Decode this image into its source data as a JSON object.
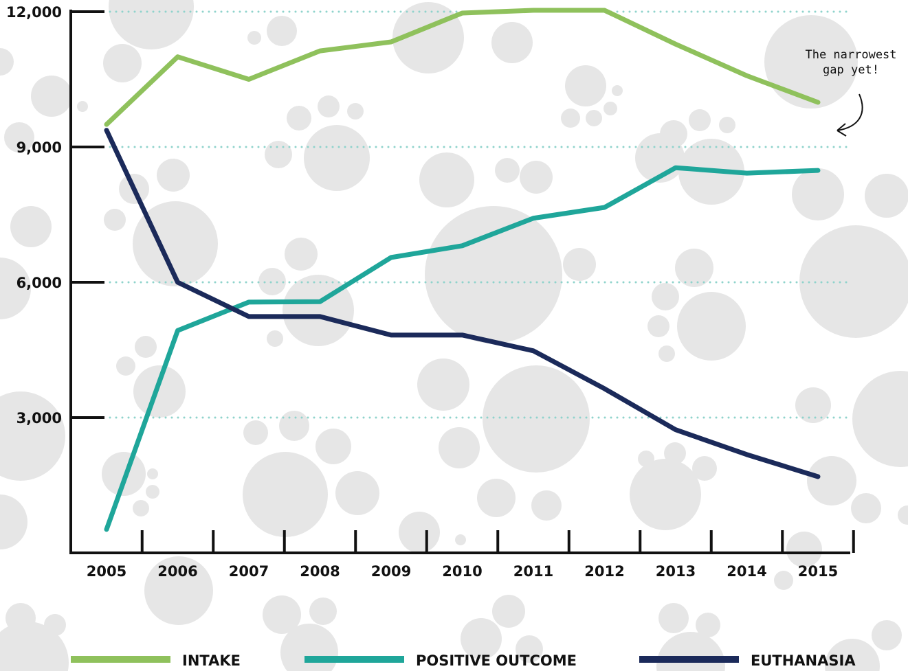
{
  "chart_data": {
    "type": "line",
    "categories": [
      "2005",
      "2006",
      "2007",
      "2008",
      "2009",
      "2010",
      "2011",
      "2012",
      "2013",
      "2014",
      "2015"
    ],
    "series": [
      {
        "name": "INTAKE",
        "color": "#8fc15c",
        "values": [
          9500,
          11000,
          10500,
          11130,
          11330,
          11970,
          12030,
          12030,
          11280,
          10580,
          9990
        ]
      },
      {
        "name": "POSITIVE OUTCOME",
        "color": "#1fa69a",
        "values": [
          520,
          4930,
          5560,
          5570,
          6550,
          6810,
          7420,
          7660,
          8540,
          8420,
          8480
        ]
      },
      {
        "name": "EUTHANASIA",
        "color": "#1b2a5a",
        "values": [
          9370,
          6000,
          5240,
          5240,
          4830,
          4830,
          4480,
          3640,
          2730,
          2180,
          1690
        ]
      }
    ],
    "ylim": [
      0,
      12000
    ],
    "yticks": [
      {
        "value": 3000,
        "label": "3,000"
      },
      {
        "value": 6000,
        "label": "6,000"
      },
      {
        "value": 9000,
        "label": "9,000"
      },
      {
        "value": 12000,
        "label": "12,000"
      }
    ],
    "grid": true,
    "annotation": [
      "The narrowest",
      "gap yet!"
    ]
  }
}
